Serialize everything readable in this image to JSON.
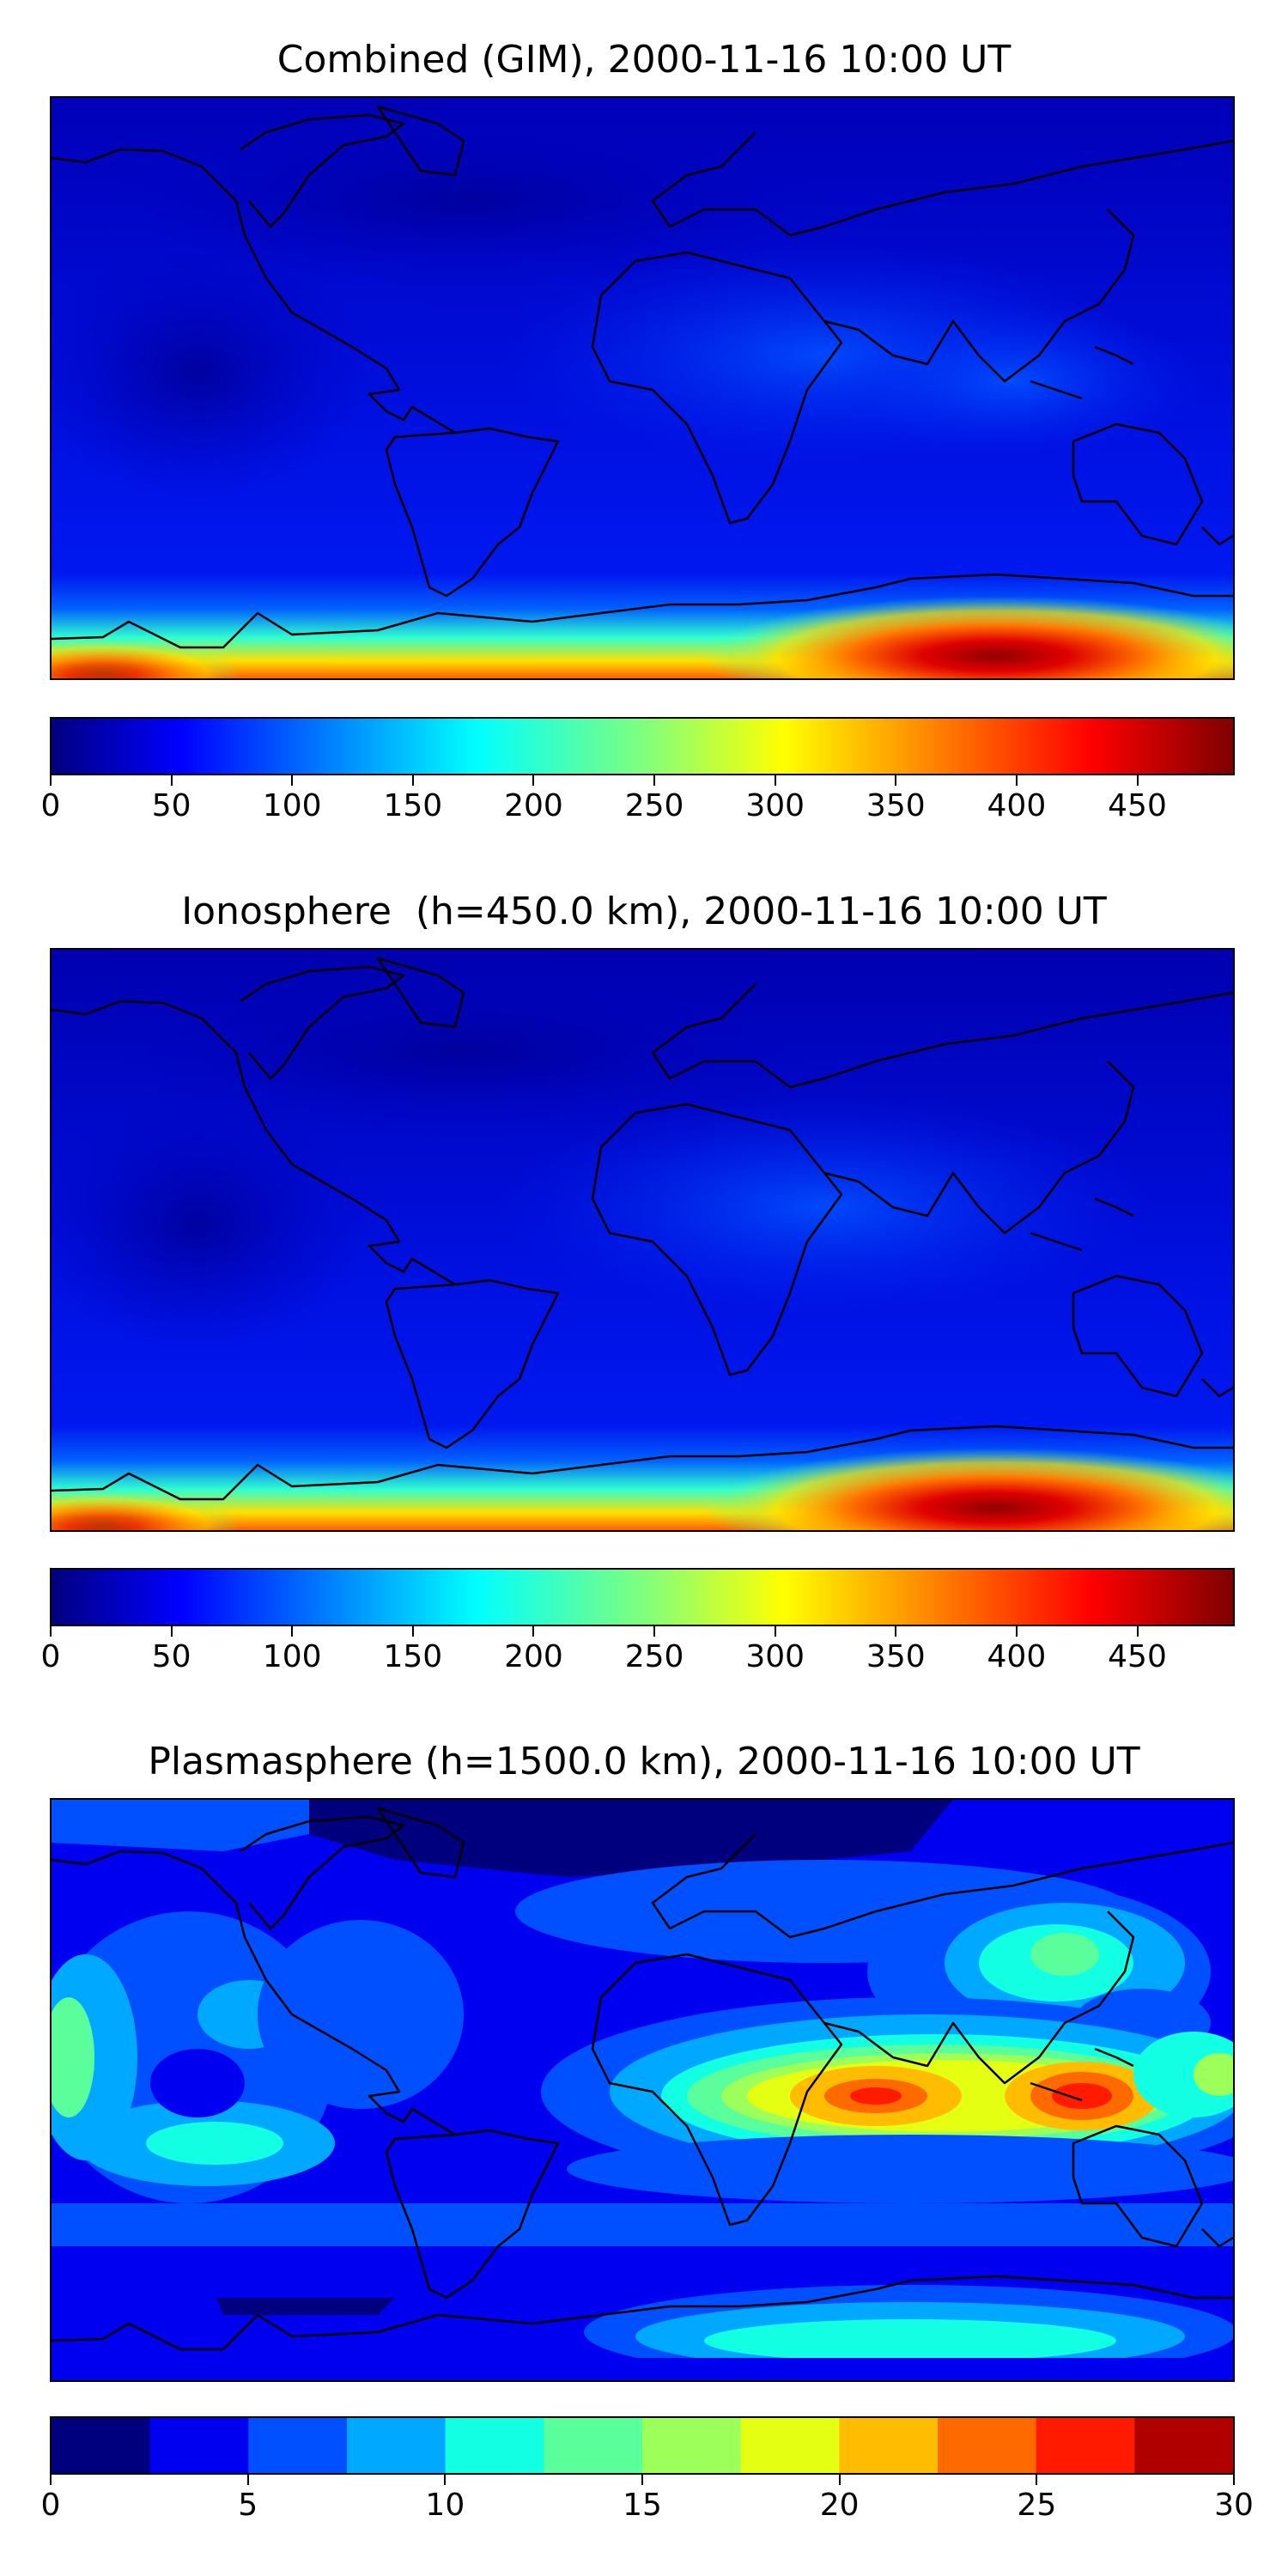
{
  "panels": [
    {
      "title": "Combined (GIM), 2000-11-16 10:00 UT",
      "colorbar": {
        "min": 0,
        "max": 490,
        "discrete": false,
        "ticks": [
          "0",
          "50",
          "100",
          "150",
          "200",
          "250",
          "300",
          "350",
          "400",
          "450"
        ],
        "tick_values": [
          0,
          50,
          100,
          150,
          200,
          250,
          300,
          350,
          400,
          450
        ],
        "colormap": "jet"
      }
    },
    {
      "title": "Ionosphere  (h=450.0 km), 2000-11-16 10:00 UT",
      "colorbar": {
        "min": 0,
        "max": 490,
        "discrete": false,
        "ticks": [
          "0",
          "50",
          "100",
          "150",
          "200",
          "250",
          "300",
          "350",
          "400",
          "450"
        ],
        "tick_values": [
          0,
          50,
          100,
          150,
          200,
          250,
          300,
          350,
          400,
          450
        ],
        "colormap": "jet"
      }
    },
    {
      "title": "Plasmasphere (h=1500.0 km), 2000-11-16 10:00 UT",
      "colorbar": {
        "min": 0,
        "max": 30,
        "discrete": true,
        "levels": 12,
        "ticks": [
          "0",
          "5",
          "10",
          "15",
          "20",
          "25",
          "30"
        ],
        "tick_values": [
          0,
          5,
          10,
          15,
          20,
          25,
          30
        ],
        "colormap": "jet"
      }
    }
  ],
  "colors": {
    "jet_stops": [
      "#00007f",
      "#0000ff",
      "#007fff",
      "#00ffff",
      "#7fff7f",
      "#ffff00",
      "#ff7f00",
      "#ff0000",
      "#7f0000"
    ],
    "discrete_levels": [
      "#00007f",
      "#0000f0",
      "#0050ff",
      "#00a8ff",
      "#12ffe4",
      "#5aff9c",
      "#9cff5a",
      "#e4ff12",
      "#ffbc00",
      "#ff6a00",
      "#ff1a00",
      "#b00000"
    ],
    "coastline": "#000000"
  }
}
